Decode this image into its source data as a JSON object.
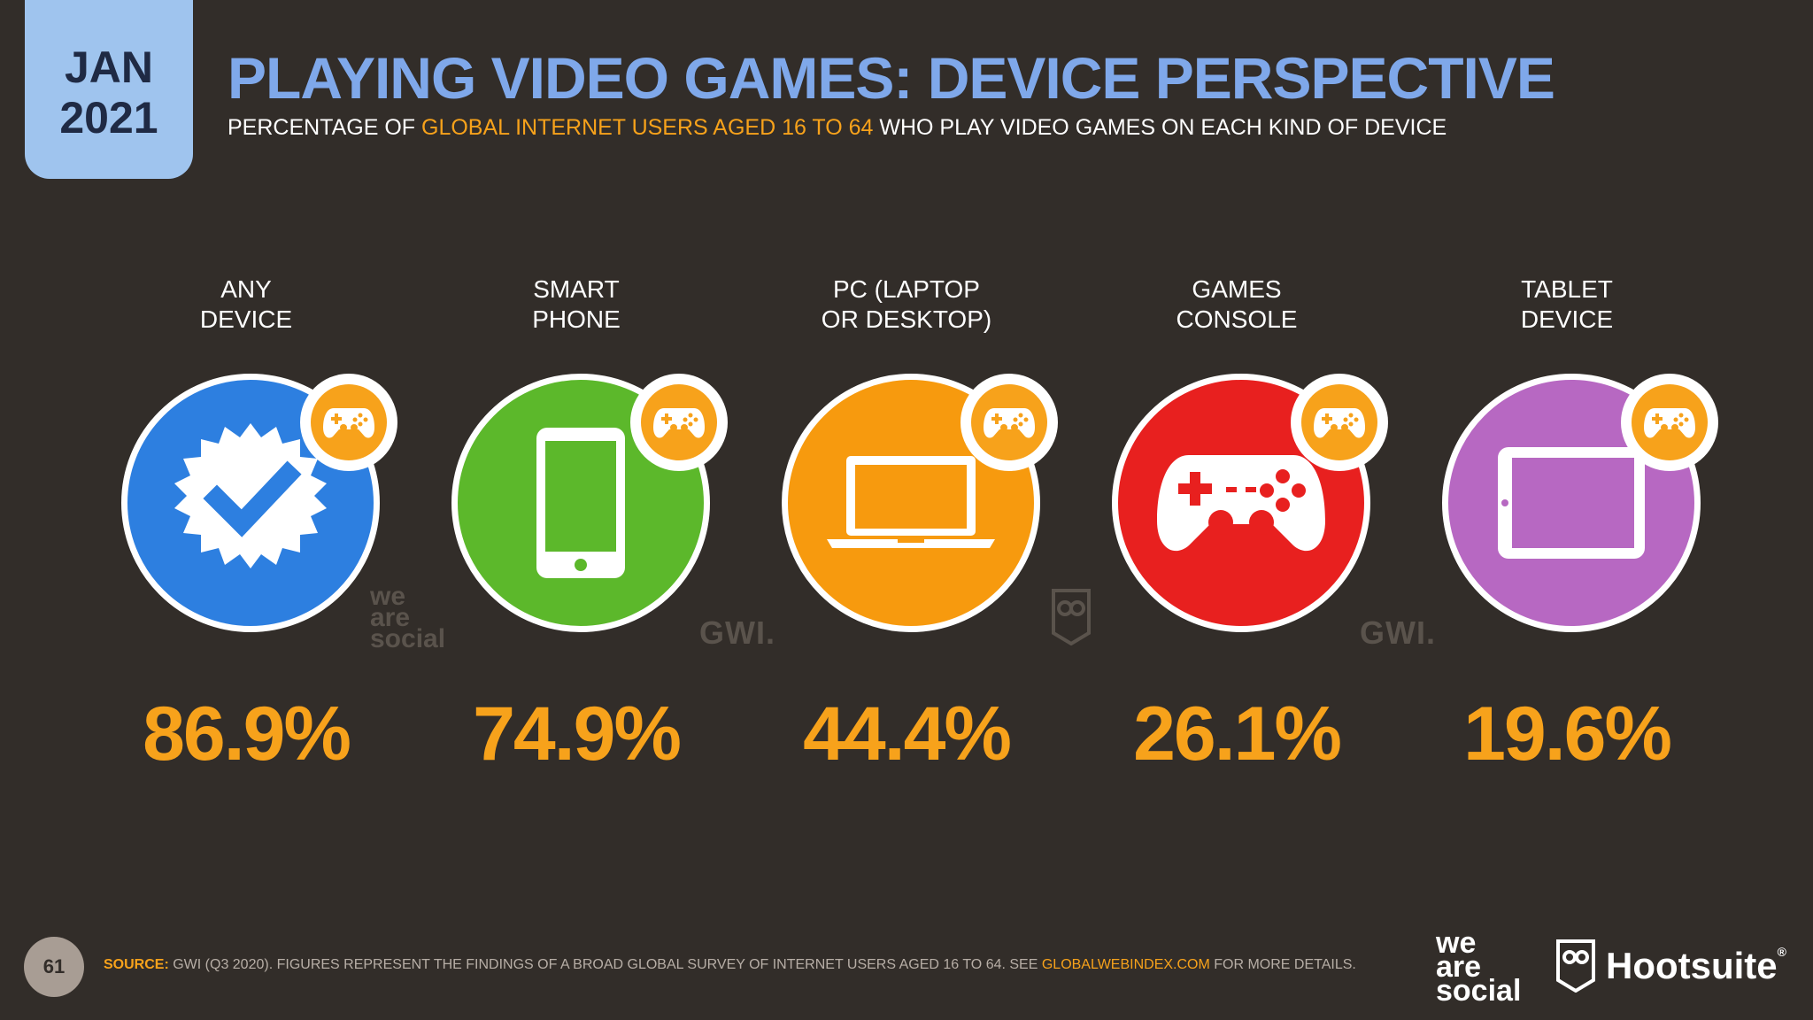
{
  "header": {
    "month": "JAN",
    "year": "2021",
    "title": "PLAYING VIDEO GAMES: DEVICE PERSPECTIVE",
    "subtitle_pre": "PERCENTAGE OF ",
    "subtitle_highlight": "GLOBAL INTERNET USERS AGED 16 TO 64",
    "subtitle_post": " WHO PLAY VIDEO GAMES ON EACH KIND OF DEVICE"
  },
  "devices": [
    {
      "label": "ANY\nDEVICE",
      "value": "86.9%",
      "color": "#2d7fe0",
      "icon": "verified-check-icon"
    },
    {
      "label": "SMART\nPHONE",
      "value": "74.9%",
      "color": "#5cb82b",
      "icon": "smartphone-icon"
    },
    {
      "label": "PC (LAPTOP\nOR DESKTOP)",
      "value": "44.4%",
      "color": "#f79a0e",
      "icon": "laptop-icon"
    },
    {
      "label": "GAMES\nCONSOLE",
      "value": "26.1%",
      "color": "#e8201f",
      "icon": "gamepad-icon"
    },
    {
      "label": "TABLET\nDEVICE",
      "value": "19.6%",
      "color": "#b768c2",
      "icon": "tablet-icon"
    }
  ],
  "watermarks": {
    "was_1": "we",
    "was_2": "are",
    "was_3": "social",
    "gwi": "GWI."
  },
  "footer": {
    "page": "61",
    "source_label": "SOURCE:",
    "source_text": " GWI (Q3 2020). FIGURES REPRESENT THE FINDINGS OF A BROAD GLOBAL SURVEY OF INTERNET USERS AGED 16 TO 64. SEE ",
    "source_link": "GLOBALWEBINDEX.COM",
    "source_tail": " FOR MORE DETAILS.",
    "brand1_l1": "we",
    "brand1_l2": "are",
    "brand1_l3": "social",
    "brand2": "Hootsuite",
    "brand2_reg": "®"
  }
}
